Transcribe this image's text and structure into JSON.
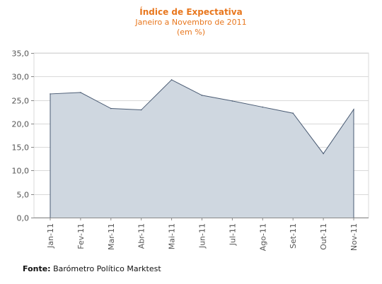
{
  "chart_data": {
    "type": "area",
    "title": "Índice de Expectativa",
    "subtitle": "Janeiro a Novembro de 2011",
    "subtitle2": "(em %)",
    "categories": [
      "Jan-11",
      "Fev-11",
      "Mar-11",
      "Abr-11",
      "Mai-11",
      "Jun-11",
      "Jul-11",
      "Ago-11",
      "Set-11",
      "Out-11",
      "Nov-11"
    ],
    "series": [
      {
        "values": [
          26.3,
          26.6,
          23.2,
          22.9,
          29.3,
          26.0,
          24.8,
          23.5,
          22.2,
          13.6,
          23.0
        ]
      }
    ],
    "ylim": [
      0,
      35
    ],
    "yticks": [
      "0,0",
      "5,0",
      "10,0",
      "15,0",
      "20,0",
      "25,0",
      "30,0",
      "35,0"
    ],
    "grid": true,
    "colors": {
      "fill": "#cfd7e0",
      "line": "#4a5b73",
      "title": "#e8771e",
      "grid": "#d9d9d9"
    }
  },
  "source": {
    "label": "Fonte:",
    "text": "Barómetro Político Marktest"
  }
}
